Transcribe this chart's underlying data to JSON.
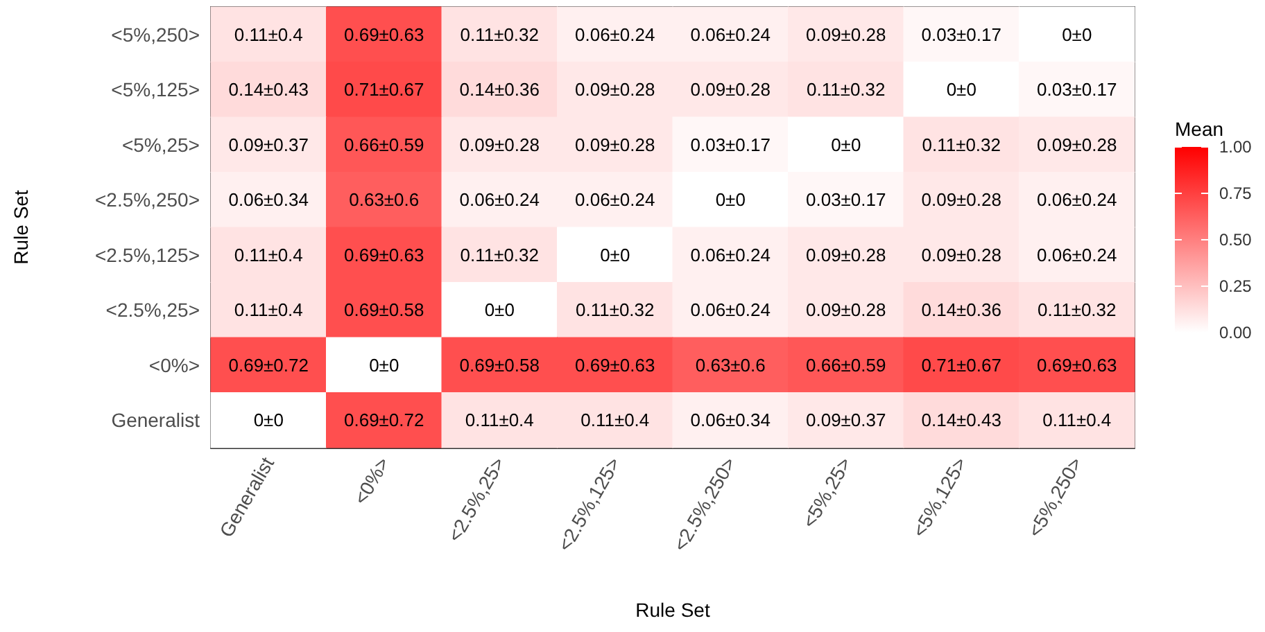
{
  "chart_data": {
    "type": "heatmap",
    "xlabel": "Rule Set",
    "ylabel": "Rule Set",
    "clabel": "Mean",
    "color": "#ff0000",
    "categories": [
      "Generalist",
      "<0%>",
      "<2.5%,25>",
      "<2.5%,125>",
      "<2.5%,250>",
      "<5%,25>",
      "<5%,125>",
      "<5%,250>"
    ],
    "y_categories": [
      "<5%,250>",
      "<5%,125>",
      "<5%,25>",
      "<2.5%,250>",
      "<2.5%,125>",
      "<2.5%,25>",
      "<0%>",
      "Generalist"
    ],
    "cells": [
      [
        0.11,
        0.69,
        0.11,
        0.06,
        0.06,
        0.09,
        0.03,
        0
      ],
      [
        0.14,
        0.71,
        0.14,
        0.09,
        0.09,
        0.11,
        0,
        0.03
      ],
      [
        0.09,
        0.66,
        0.09,
        0.09,
        0.03,
        0,
        0.11,
        0.09
      ],
      [
        0.06,
        0.63,
        0.06,
        0.06,
        0,
        0.03,
        0.09,
        0.06
      ],
      [
        0.11,
        0.69,
        0.11,
        0,
        0.06,
        0.09,
        0.09,
        0.06
      ],
      [
        0.11,
        0.69,
        0,
        0.11,
        0.06,
        0.09,
        0.14,
        0.11
      ],
      [
        0.69,
        0,
        0.69,
        0.69,
        0.63,
        0.66,
        0.71,
        0.69
      ],
      [
        0,
        0.69,
        0.11,
        0.11,
        0.06,
        0.09,
        0.14,
        0.11
      ]
    ],
    "cell_labels": [
      [
        "0.11±0.4",
        "0.69±0.63",
        "0.11±0.32",
        "0.06±0.24",
        "0.06±0.24",
        "0.09±0.28",
        "0.03±0.17",
        "0±0"
      ],
      [
        "0.14±0.43",
        "0.71±0.67",
        "0.14±0.36",
        "0.09±0.28",
        "0.09±0.28",
        "0.11±0.32",
        "0±0",
        "0.03±0.17"
      ],
      [
        "0.09±0.37",
        "0.66±0.59",
        "0.09±0.28",
        "0.09±0.28",
        "0.03±0.17",
        "0±0",
        "0.11±0.32",
        "0.09±0.28"
      ],
      [
        "0.06±0.34",
        "0.63±0.6",
        "0.06±0.24",
        "0.06±0.24",
        "0±0",
        "0.03±0.17",
        "0.09±0.28",
        "0.06±0.24"
      ],
      [
        "0.11±0.4",
        "0.69±0.63",
        "0.11±0.32",
        "0±0",
        "0.06±0.24",
        "0.09±0.28",
        "0.09±0.28",
        "0.06±0.24"
      ],
      [
        "0.11±0.4",
        "0.69±0.58",
        "0±0",
        "0.11±0.32",
        "0.06±0.24",
        "0.09±0.28",
        "0.14±0.36",
        "0.11±0.32"
      ],
      [
        "0.69±0.72",
        "0±0",
        "0.69±0.58",
        "0.69±0.63",
        "0.63±0.6",
        "0.66±0.59",
        "0.71±0.67",
        "0.69±0.63"
      ],
      [
        "0±0",
        "0.69±0.72",
        "0.11±0.4",
        "0.11±0.4",
        "0.06±0.34",
        "0.09±0.37",
        "0.14±0.43",
        "0.11±0.4"
      ]
    ],
    "clim": [
      0,
      1
    ],
    "cticks": [
      {
        "value": 0,
        "label": "0.00"
      },
      {
        "value": 0.25,
        "label": "0.25"
      },
      {
        "value": 0.5,
        "label": "0.50"
      },
      {
        "value": 0.75,
        "label": "0.75"
      },
      {
        "value": 1,
        "label": "1.00"
      }
    ]
  }
}
